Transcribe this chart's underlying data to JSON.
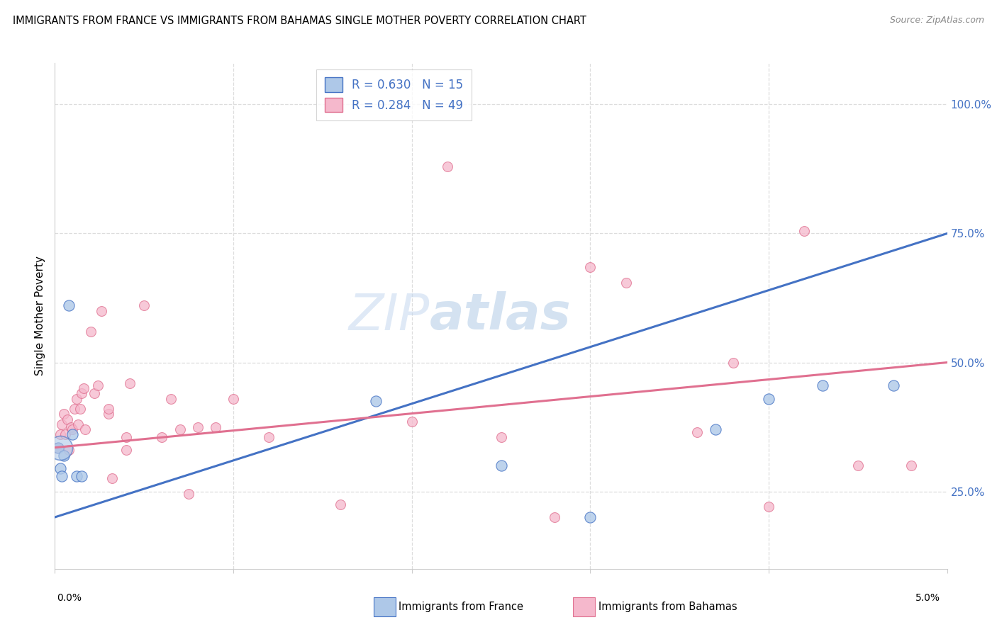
{
  "title": "IMMIGRANTS FROM FRANCE VS IMMIGRANTS FROM BAHAMAS SINGLE MOTHER POVERTY CORRELATION CHART",
  "source": "Source: ZipAtlas.com",
  "ylabel": "Single Mother Poverty",
  "ytick_labels": [
    "25.0%",
    "50.0%",
    "75.0%",
    "100.0%"
  ],
  "ytick_values": [
    0.25,
    0.5,
    0.75,
    1.0
  ],
  "xlim": [
    0.0,
    0.05
  ],
  "ylim": [
    0.1,
    1.08
  ],
  "france_R": 0.63,
  "france_N": 15,
  "bahamas_R": 0.284,
  "bahamas_N": 49,
  "france_fill_color": "#aec8e8",
  "bahamas_fill_color": "#f5b8cc",
  "france_edge_color": "#4472c4",
  "bahamas_edge_color": "#e07090",
  "france_scatter_x": [
    0.0002,
    0.0003,
    0.0004,
    0.0005,
    0.0008,
    0.001,
    0.0012,
    0.0015,
    0.018,
    0.025,
    0.03,
    0.037,
    0.04,
    0.043,
    0.047
  ],
  "france_scatter_y": [
    0.335,
    0.295,
    0.28,
    0.32,
    0.61,
    0.36,
    0.28,
    0.28,
    0.425,
    0.3,
    0.2,
    0.37,
    0.43,
    0.455,
    0.455
  ],
  "bahamas_scatter_x": [
    0.0001,
    0.0002,
    0.0003,
    0.0004,
    0.0005,
    0.0006,
    0.0007,
    0.0008,
    0.0009,
    0.001,
    0.0011,
    0.0012,
    0.0013,
    0.0014,
    0.0015,
    0.0016,
    0.0017,
    0.002,
    0.0022,
    0.0024,
    0.0026,
    0.003,
    0.003,
    0.0032,
    0.004,
    0.004,
    0.0042,
    0.005,
    0.006,
    0.0065,
    0.007,
    0.0075,
    0.008,
    0.009,
    0.01,
    0.012,
    0.016,
    0.02,
    0.022,
    0.025,
    0.028,
    0.03,
    0.032,
    0.036,
    0.038,
    0.04,
    0.042,
    0.045,
    0.048
  ],
  "bahamas_scatter_y": [
    0.335,
    0.335,
    0.36,
    0.38,
    0.4,
    0.36,
    0.39,
    0.33,
    0.375,
    0.37,
    0.41,
    0.43,
    0.38,
    0.41,
    0.44,
    0.45,
    0.37,
    0.56,
    0.44,
    0.455,
    0.6,
    0.4,
    0.41,
    0.275,
    0.33,
    0.355,
    0.46,
    0.61,
    0.355,
    0.43,
    0.37,
    0.245,
    0.375,
    0.375,
    0.43,
    0.355,
    0.225,
    0.385,
    0.88,
    0.355,
    0.2,
    0.685,
    0.655,
    0.365,
    0.5,
    0.22,
    0.755,
    0.3,
    0.3
  ],
  "france_trend_x": [
    0.0,
    0.05
  ],
  "france_trend_y": [
    0.2,
    0.75
  ],
  "bahamas_trend_x": [
    0.0,
    0.05
  ],
  "bahamas_trend_y": [
    0.335,
    0.5
  ],
  "watermark_zip": "ZIP",
  "watermark_atlas": "atlas",
  "france_marker_size": 120,
  "bahamas_marker_size": 100,
  "france_large_marker_size": 600,
  "grid_color": "#dddddd",
  "xtick_positions": [
    0.0,
    0.01,
    0.02,
    0.03,
    0.04,
    0.05
  ],
  "legend_france_label": "R = 0.630   N = 15",
  "legend_bahamas_label": "R = 0.284   N = 49",
  "bottom_label_france": "Immigrants from France",
  "bottom_label_bahamas": "Immigrants from Bahamas"
}
